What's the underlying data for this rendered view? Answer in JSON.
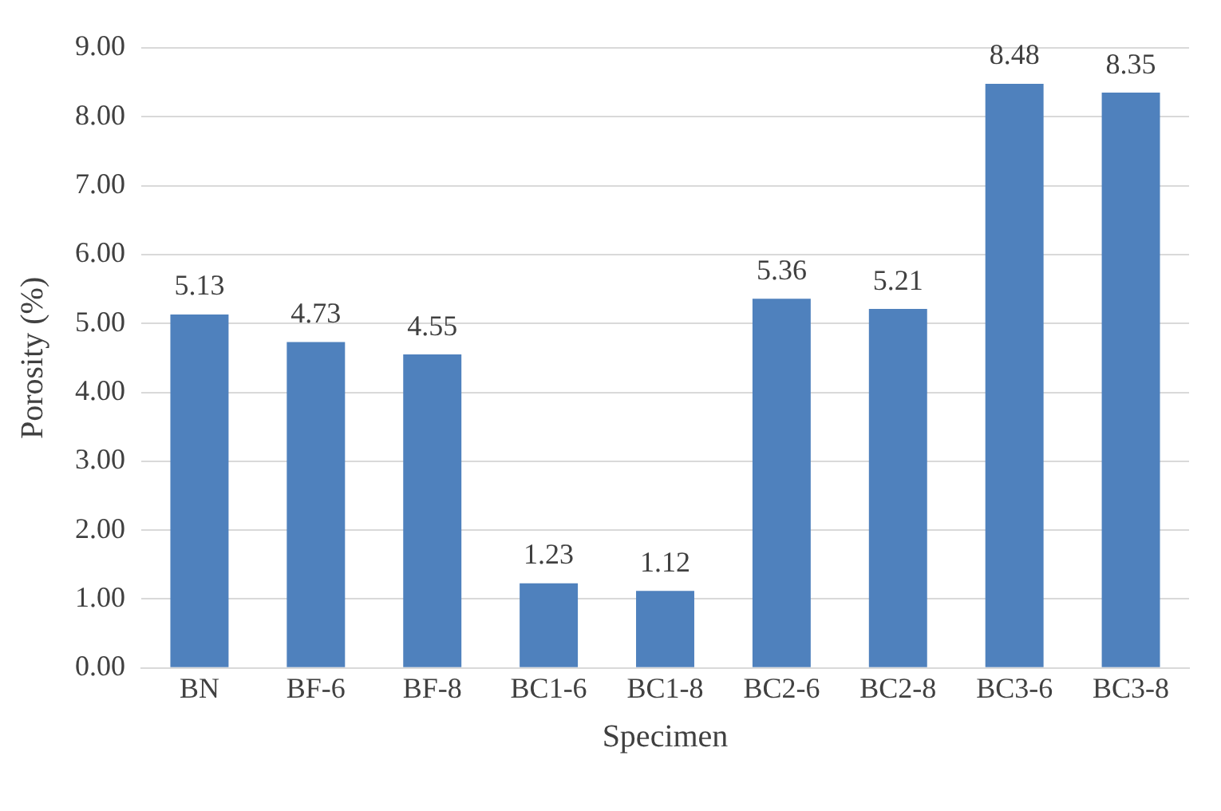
{
  "chart_data": {
    "type": "bar",
    "xlabel": "Specimen",
    "ylabel": "Porosity (%)",
    "categories": [
      "BN",
      "BF-6",
      "BF-8",
      "BC1-6",
      "BC1-8",
      "BC2-6",
      "BC2-8",
      "BC3-6",
      "BC3-8"
    ],
    "values": [
      5.13,
      4.73,
      4.55,
      1.23,
      1.12,
      5.36,
      5.21,
      8.48,
      8.35
    ],
    "color": "#4f81bd",
    "ylim": [
      0,
      9
    ],
    "yticks": [
      {
        "value": 0,
        "label": "0.00"
      },
      {
        "value": 1,
        "label": "1.00"
      },
      {
        "value": 2,
        "label": "2.00"
      },
      {
        "value": 3,
        "label": "3.00"
      },
      {
        "value": 4,
        "label": "4.00"
      },
      {
        "value": 5,
        "label": "5.00"
      },
      {
        "value": 6,
        "label": "6.00"
      },
      {
        "value": 7,
        "label": "7.00"
      },
      {
        "value": 8,
        "label": "8.00"
      },
      {
        "value": 9,
        "label": "9.00"
      }
    ],
    "grid": "y",
    "data_labels": true
  }
}
